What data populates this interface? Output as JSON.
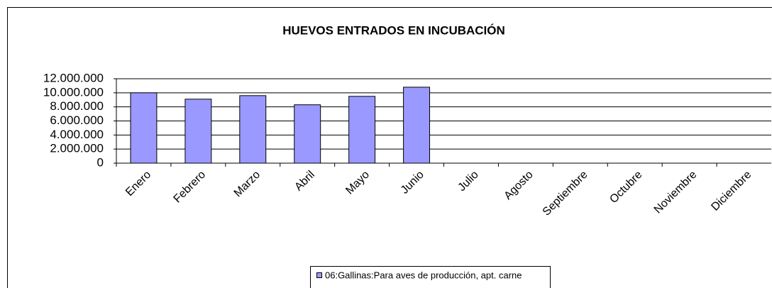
{
  "chart_data": {
    "type": "bar",
    "title": "HUEVOS ENTRADOS EN INCUBACIÓN",
    "categories": [
      "Enero",
      "Febrero",
      "Marzo",
      "Abril",
      "Mayo",
      "Junio",
      "Julio",
      "Agosto",
      "Septiembre",
      "Octubre",
      "Noviembre",
      "Diciembre"
    ],
    "series": [
      {
        "name": "06:Gallinas:Para aves de producción, apt. carne",
        "color": "#9999ff",
        "values": [
          10000000,
          9100000,
          9600000,
          8300000,
          9500000,
          10800000,
          null,
          null,
          null,
          null,
          null,
          null
        ]
      }
    ],
    "ylim": [
      0,
      12000000
    ],
    "yticks": [
      0,
      {
        "value": 2000000,
        "label": "2.000.000"
      },
      {
        "value": 4000000,
        "label": "4.000.000"
      },
      {
        "value": 6000000,
        "label": "6.000.000"
      },
      {
        "value": 8000000,
        "label": "8.000.000"
      },
      {
        "value": 10000000,
        "label": "10.000.000"
      },
      {
        "value": 12000000,
        "label": "12.000.000"
      }
    ],
    "grid": true,
    "legend": "bottom"
  }
}
